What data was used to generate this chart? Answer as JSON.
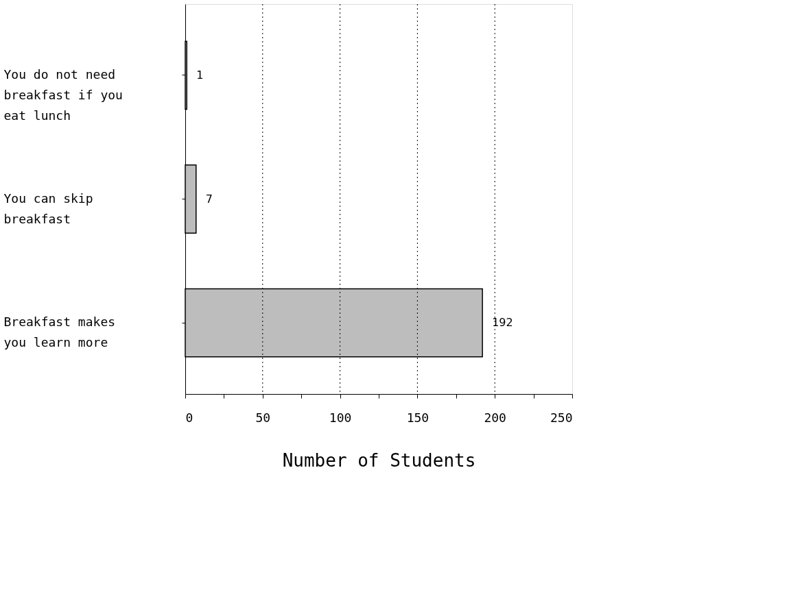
{
  "chart_data": {
    "type": "bar",
    "orientation": "horizontal",
    "xlabel": "Number of Students",
    "categories": [
      "You do not need breakfast if you eat lunch",
      "You can skip breakfast",
      "Breakfast makes you learn more"
    ],
    "values": [
      1,
      7,
      192
    ],
    "color": "#bdbdbd",
    "data_labels": true,
    "xlim": [
      0,
      250
    ],
    "xticks": [
      0,
      {
        "value": 25,
        "label": null
      },
      50,
      {
        "value": 75,
        "label": null
      },
      100,
      {
        "value": 125,
        "label": null
      },
      150,
      {
        "value": 175,
        "label": null
      },
      200,
      {
        "value": 225,
        "label": null
      },
      250
    ],
    "grid": "x"
  }
}
